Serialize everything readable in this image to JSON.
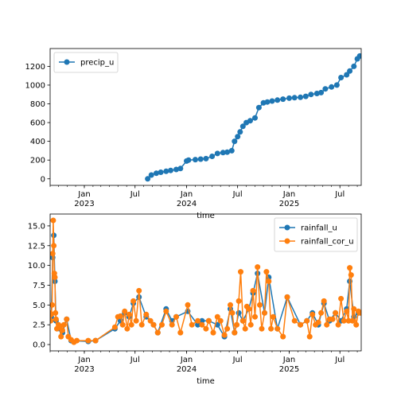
{
  "chart_data": [
    {
      "type": "line",
      "title": "",
      "xlabel": "time",
      "ylabel": "",
      "ylim": [
        -70,
        1390
      ],
      "yticks": [
        0,
        200,
        400,
        600,
        800,
        1000,
        1200
      ],
      "xticks": [
        {
          "major": "Jan",
          "minor": "2023"
        },
        {
          "major": "Jul",
          "minor": ""
        },
        {
          "major": "Jan",
          "minor": "2024"
        },
        {
          "major": "Jul",
          "minor": ""
        },
        {
          "major": "Jan",
          "minor": "2025"
        },
        {
          "major": "Jul",
          "minor": ""
        }
      ],
      "xrange": [
        "2022-09-01",
        "2025-09-15"
      ],
      "legend": "upper left",
      "series": [
        {
          "name": "precip_u",
          "color": "#1f77b4",
          "x": [
            "2023-08-15",
            "2023-08-28",
            "2023-09-15",
            "2023-10-01",
            "2023-10-20",
            "2023-11-05",
            "2023-11-25",
            "2023-12-10",
            "2024-01-01",
            "2024-01-08",
            "2024-02-01",
            "2024-02-20",
            "2024-03-10",
            "2024-04-01",
            "2024-04-20",
            "2024-05-10",
            "2024-05-25",
            "2024-06-10",
            "2024-06-20",
            "2024-07-01",
            "2024-07-10",
            "2024-07-20",
            "2024-08-01",
            "2024-08-15",
            "2024-09-01",
            "2024-09-15",
            "2024-10-01",
            "2024-10-15",
            "2024-11-01",
            "2024-11-20",
            "2024-12-10",
            "2025-01-01",
            "2025-01-20",
            "2025-02-10",
            "2025-03-01",
            "2025-03-20",
            "2025-04-10",
            "2025-04-25",
            "2025-05-10",
            "2025-06-01",
            "2025-06-20",
            "2025-07-05",
            "2025-07-25",
            "2025-08-05",
            "2025-08-20",
            "2025-09-01",
            "2025-09-10"
          ],
          "y": [
            0,
            40,
            60,
            70,
            80,
            90,
            100,
            110,
            190,
            200,
            205,
            210,
            215,
            240,
            270,
            280,
            285,
            300,
            400,
            450,
            500,
            560,
            600,
            620,
            650,
            760,
            810,
            820,
            830,
            840,
            850,
            860,
            865,
            870,
            880,
            900,
            910,
            920,
            960,
            980,
            1000,
            1080,
            1110,
            1150,
            1200,
            1280,
            1310
          ]
        }
      ]
    },
    {
      "type": "line",
      "title": "",
      "xlabel": "time",
      "ylabel": "",
      "ylim": [
        -0.8,
        16.5
      ],
      "yticks": [
        0.0,
        2.5,
        5.0,
        7.5,
        10.0,
        12.5,
        15.0
      ],
      "xticks": [
        {
          "major": "Jan",
          "minor": "2023"
        },
        {
          "major": "Jul",
          "minor": ""
        },
        {
          "major": "Jan",
          "minor": "2024"
        },
        {
          "major": "Jul",
          "minor": ""
        },
        {
          "major": "Jan",
          "minor": "2025"
        },
        {
          "major": "Jul",
          "minor": ""
        }
      ],
      "xrange": [
        "2022-09-01",
        "2025-09-15"
      ],
      "legend": "upper right",
      "series": [
        {
          "name": "rainfall_u",
          "color": "#1f77b4",
          "x": [
            "2022-09-05",
            "2022-09-10",
            "2022-09-14",
            "2022-09-18",
            "2022-09-22",
            "2022-10-05",
            "2022-10-15",
            "2022-10-30",
            "2022-11-15",
            "2023-01-15",
            "2023-02-10",
            "2023-04-20",
            "2023-05-10",
            "2023-05-25",
            "2023-06-10",
            "2023-06-25",
            "2023-07-15",
            "2023-08-10",
            "2023-09-05",
            "2023-09-20",
            "2023-10-20",
            "2023-11-10",
            "2023-11-25",
            "2024-01-05",
            "2024-02-10",
            "2024-02-25",
            "2024-03-20",
            "2024-04-20",
            "2024-05-15",
            "2024-06-05",
            "2024-06-20",
            "2024-07-05",
            "2024-07-20",
            "2024-08-10",
            "2024-08-25",
            "2024-09-10",
            "2024-10-05",
            "2024-10-20",
            "2024-11-20",
            "2024-12-25",
            "2025-02-10",
            "2025-03-05",
            "2025-03-25",
            "2025-04-15",
            "2025-05-05",
            "2025-05-25",
            "2025-06-15",
            "2025-07-05",
            "2025-07-25",
            "2025-08-05",
            "2025-08-20",
            "2025-09-05"
          ],
          "y": [
            3.5,
            11.0,
            13.8,
            8.0,
            3.0,
            2.0,
            1.5,
            3.2,
            0.5,
            0.4,
            0.5,
            2.0,
            3.0,
            4.0,
            3.5,
            5.2,
            6.0,
            3.5,
            2.5,
            1.5,
            4.5,
            3.0,
            3.5,
            4.2,
            2.5,
            3.0,
            3.0,
            2.5,
            1.0,
            4.5,
            1.5,
            4.0,
            3.0,
            4.5,
            6.5,
            9.0,
            4.0,
            8.5,
            2.0,
            6.0,
            2.5,
            3.0,
            4.0,
            2.5,
            5.2,
            3.0,
            4.0,
            3.0,
            4.5,
            8.0,
            3.5,
            4.0
          ]
        },
        {
          "name": "rainfall_cor_u",
          "color": "#ff7f0e",
          "x": [
            "2022-09-01",
            "2022-09-03",
            "2022-09-05",
            "2022-09-08",
            "2022-09-10",
            "2022-09-12",
            "2022-09-14",
            "2022-09-16",
            "2022-09-18",
            "2022-09-20",
            "2022-09-22",
            "2022-09-25",
            "2022-10-01",
            "2022-10-05",
            "2022-10-10",
            "2022-10-15",
            "2022-10-20",
            "2022-10-30",
            "2022-11-05",
            "2022-11-15",
            "2022-11-25",
            "2022-12-05",
            "2023-01-15",
            "2023-02-10",
            "2023-04-20",
            "2023-05-01",
            "2023-05-10",
            "2023-05-18",
            "2023-05-25",
            "2023-06-03",
            "2023-06-10",
            "2023-06-18",
            "2023-06-25",
            "2023-07-05",
            "2023-07-15",
            "2023-07-25",
            "2023-08-10",
            "2023-08-25",
            "2023-09-05",
            "2023-09-20",
            "2023-10-05",
            "2023-10-20",
            "2023-11-10",
            "2023-11-25",
            "2023-12-10",
            "2024-01-05",
            "2024-01-20",
            "2024-02-10",
            "2024-02-25",
            "2024-03-10",
            "2024-03-20",
            "2024-04-05",
            "2024-04-20",
            "2024-05-01",
            "2024-05-15",
            "2024-05-25",
            "2024-06-05",
            "2024-06-12",
            "2024-06-20",
            "2024-06-28",
            "2024-07-05",
            "2024-07-12",
            "2024-07-20",
            "2024-07-28",
            "2024-08-03",
            "2024-08-10",
            "2024-08-17",
            "2024-08-25",
            "2024-09-01",
            "2024-09-10",
            "2024-09-18",
            "2024-09-25",
            "2024-10-05",
            "2024-10-12",
            "2024-10-20",
            "2024-10-28",
            "2024-11-05",
            "2024-11-20",
            "2024-12-10",
            "2024-12-25",
            "2025-01-20",
            "2025-02-10",
            "2025-03-05",
            "2025-03-15",
            "2025-03-25",
            "2025-04-05",
            "2025-04-15",
            "2025-04-25",
            "2025-05-05",
            "2025-05-15",
            "2025-05-25",
            "2025-06-05",
            "2025-06-15",
            "2025-06-25",
            "2025-07-05",
            "2025-07-15",
            "2025-07-25",
            "2025-08-01",
            "2025-08-05",
            "2025-08-10",
            "2025-08-15",
            "2025-08-20",
            "2025-08-28",
            "2025-09-05",
            "2025-09-12"
          ],
          "y": [
            4.0,
            3.0,
            3.8,
            5.0,
            11.5,
            15.7,
            12.5,
            9.0,
            8.5,
            4.0,
            3.2,
            2.0,
            2.5,
            2.2,
            1.0,
            1.8,
            2.5,
            3.2,
            1.0,
            0.6,
            0.3,
            0.5,
            0.5,
            0.5,
            2.2,
            3.5,
            3.6,
            2.5,
            4.2,
            2.0,
            3.8,
            2.5,
            5.5,
            3.0,
            6.8,
            2.5,
            3.8,
            3.0,
            2.5,
            1.5,
            2.5,
            4.2,
            2.5,
            3.5,
            1.5,
            5.0,
            2.5,
            3.0,
            2.5,
            2.0,
            3.0,
            1.5,
            3.5,
            3.0,
            1.2,
            2.0,
            5.0,
            4.0,
            1.5,
            2.5,
            5.5,
            9.2,
            3.0,
            2.0,
            4.8,
            4.5,
            2.5,
            6.8,
            3.5,
            9.8,
            5.0,
            2.0,
            4.0,
            9.2,
            8.0,
            2.0,
            3.5,
            2.0,
            1.0,
            6.0,
            3.0,
            2.5,
            3.0,
            1.0,
            3.8,
            2.5,
            2.8,
            4.0,
            5.5,
            2.5,
            3.2,
            3.2,
            4.0,
            2.5,
            5.8,
            3.0,
            4.2,
            3.0,
            9.7,
            8.8,
            3.0,
            4.5,
            2.5,
            4.2,
            4.0
          ]
        }
      ]
    }
  ]
}
